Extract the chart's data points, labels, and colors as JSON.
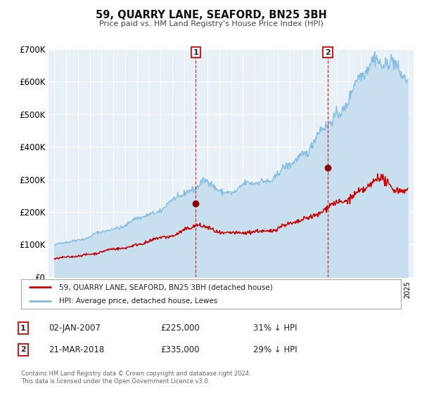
{
  "title": "59, QUARRY LANE, SEAFORD, BN25 3BH",
  "subtitle": "Price paid vs. HM Land Registry's House Price Index (HPI)",
  "hpi_color": "#7cb9e0",
  "hpi_fill_color": "#c8dff0",
  "price_color": "#cc0000",
  "fig_bg": "#ffffff",
  "plot_bg": "#e8f0f8",
  "grid_color": "#ffffff",
  "ylim": [
    0,
    700000
  ],
  "yticks": [
    0,
    100000,
    200000,
    300000,
    400000,
    500000,
    600000,
    700000
  ],
  "ytick_labels": [
    "£0",
    "£100K",
    "£200K",
    "£300K",
    "£400K",
    "£500K",
    "£600K",
    "£700K"
  ],
  "sale1_x": 2007.01,
  "sale1_y": 225000,
  "sale2_x": 2018.22,
  "sale2_y": 335000,
  "legend_line1": "59, QUARRY LANE, SEAFORD, BN25 3BH (detached house)",
  "legend_line2": "HPI: Average price, detached house, Lewes",
  "footer": "Contains HM Land Registry data © Crown copyright and database right 2024.\nThis data is licensed under the Open Government Licence v3.0.",
  "xmin": 1994.5,
  "xmax": 2025.5,
  "noise_seed": 42,
  "hpi_base": 97000,
  "price_base": 55000
}
